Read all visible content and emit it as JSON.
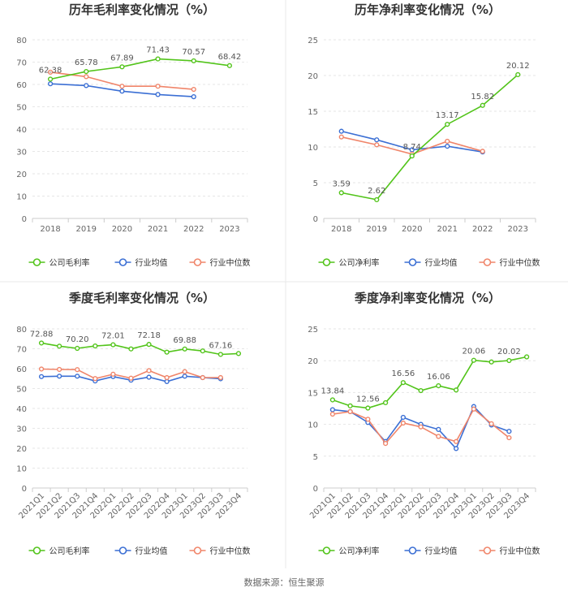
{
  "source": "数据来源：恒生聚源",
  "colors": {
    "company": "#52c41a",
    "avg": "#3b6fd4",
    "median": "#f0856a",
    "grid": "#e6e6e6",
    "axis": "#cccccc",
    "divider": "#e8e8e8"
  },
  "legends": {
    "gross": [
      "公司毛利率",
      "行业均值",
      "行业中位数"
    ],
    "net": [
      "公司净利率",
      "行业均值",
      "行业中位数"
    ]
  },
  "chart_data": [
    {
      "type": "line",
      "title": "历年毛利率变化情况（%）",
      "categories": [
        "2018",
        "2019",
        "2020",
        "2021",
        "2022",
        "2023"
      ],
      "ylim": [
        0,
        80
      ],
      "yticks": [
        0,
        10,
        20,
        30,
        40,
        50,
        60,
        70,
        80
      ],
      "grid": true,
      "legend_position": "bottom",
      "series": [
        {
          "name": "公司毛利率",
          "values": [
            62.38,
            65.78,
            67.89,
            71.43,
            70.57,
            68.42
          ],
          "labels": [
            "62.38",
            "65.78",
            "67.89",
            "71.43",
            "70.57",
            "68.42"
          ]
        },
        {
          "name": "行业均值",
          "values": [
            60.3,
            59.5,
            57.0,
            55.5,
            54.5,
            null
          ],
          "labels": []
        },
        {
          "name": "行业中位数",
          "values": [
            65.5,
            63.5,
            59.2,
            59.2,
            57.8,
            null
          ],
          "labels": []
        }
      ]
    },
    {
      "type": "line",
      "title": "历年净利率变化情况（%）",
      "categories": [
        "2018",
        "2019",
        "2020",
        "2021",
        "2022",
        "2023"
      ],
      "ylim": [
        0,
        25
      ],
      "yticks": [
        0,
        5,
        10,
        15,
        20,
        25
      ],
      "grid": true,
      "legend_position": "bottom",
      "series": [
        {
          "name": "公司净利率",
          "values": [
            3.59,
            2.62,
            8.74,
            13.17,
            15.82,
            20.12
          ],
          "labels": [
            "3.59",
            "2.62",
            "8.74",
            "13.17",
            "15.82",
            "20.12"
          ]
        },
        {
          "name": "行业均值",
          "values": [
            12.2,
            11.0,
            9.6,
            10.1,
            9.3,
            null
          ],
          "labels": []
        },
        {
          "name": "行业中位数",
          "values": [
            11.4,
            10.3,
            9.0,
            10.8,
            9.4,
            null
          ],
          "labels": []
        }
      ]
    },
    {
      "type": "line",
      "title": "季度毛利率变化情况（%）",
      "categories": [
        "2021Q1",
        "2021Q2",
        "2021Q3",
        "2021Q4",
        "2022Q1",
        "2022Q2",
        "2022Q3",
        "2022Q4",
        "2023Q1",
        "2023Q2",
        "2023Q3",
        "2023Q4"
      ],
      "ylim": [
        0,
        80
      ],
      "yticks": [
        0,
        10,
        20,
        30,
        40,
        50,
        60,
        70,
        80
      ],
      "grid": true,
      "legend_position": "bottom",
      "series": [
        {
          "name": "公司毛利率",
          "values": [
            72.88,
            71.3,
            70.2,
            71.4,
            72.01,
            69.9,
            72.18,
            68.3,
            69.88,
            68.9,
            67.16,
            67.6
          ],
          "labels": [
            "72.88",
            "",
            "70.20",
            "",
            "72.01",
            "",
            "72.18",
            "",
            "69.88",
            "",
            "67.16",
            ""
          ]
        },
        {
          "name": "行业均值",
          "values": [
            56.0,
            56.2,
            56.2,
            53.8,
            56.0,
            54.2,
            55.7,
            53.5,
            56.2,
            55.5,
            54.9,
            null
          ],
          "labels": []
        },
        {
          "name": "行业中位数",
          "values": [
            59.8,
            59.6,
            59.5,
            55.0,
            57.2,
            55.2,
            59.0,
            55.5,
            58.5,
            55.5,
            55.5,
            null
          ],
          "labels": []
        }
      ]
    },
    {
      "type": "line",
      "title": "季度净利率变化情况（%）",
      "categories": [
        "2021Q1",
        "2021Q2",
        "2021Q3",
        "2021Q4",
        "2022Q1",
        "2022Q2",
        "2022Q3",
        "2022Q4",
        "2023Q1",
        "2023Q2",
        "2023Q3",
        "2023Q4"
      ],
      "ylim": [
        0,
        25
      ],
      "yticks": [
        0,
        5,
        10,
        15,
        20,
        25
      ],
      "grid": true,
      "legend_position": "bottom",
      "series": [
        {
          "name": "公司净利率",
          "values": [
            13.84,
            12.9,
            12.56,
            13.4,
            16.56,
            15.3,
            16.06,
            15.4,
            20.06,
            19.8,
            20.02,
            20.6
          ],
          "labels": [
            "13.84",
            "",
            "12.56",
            "",
            "16.56",
            "",
            "16.06",
            "",
            "20.06",
            "",
            "20.02",
            ""
          ]
        },
        {
          "name": "行业均值",
          "values": [
            12.3,
            12.0,
            10.3,
            7.3,
            11.1,
            10.0,
            9.2,
            6.2,
            12.8,
            9.9,
            8.9,
            null
          ],
          "labels": []
        },
        {
          "name": "行业中位数",
          "values": [
            11.6,
            12.0,
            10.8,
            7.0,
            10.2,
            9.6,
            8.1,
            7.3,
            12.4,
            10.1,
            7.9,
            null
          ],
          "labels": []
        }
      ]
    }
  ]
}
